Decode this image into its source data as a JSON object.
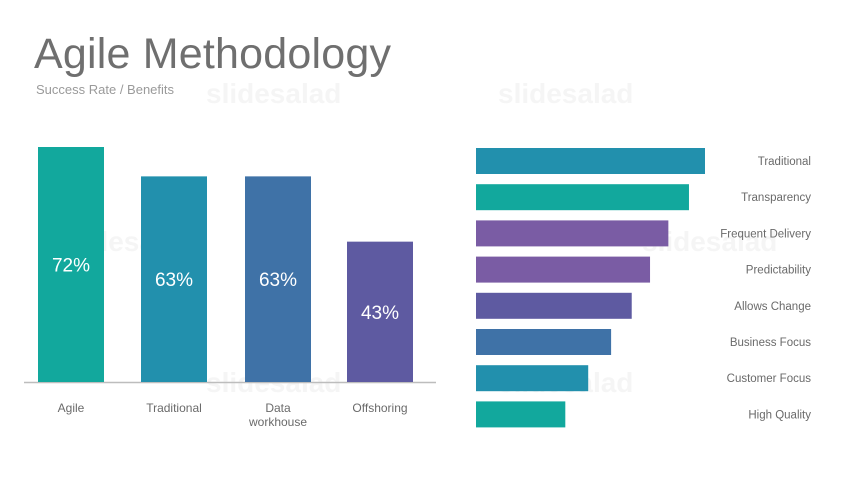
{
  "header": {
    "title": "Agile Methodology",
    "subtitle": "Success Rate / Benefits"
  },
  "watermark": "slidesalad",
  "chart_data": [
    {
      "type": "bar",
      "categories": [
        "Agile",
        "Traditional",
        "Data workhouse",
        "Offshoring"
      ],
      "category_lines": [
        [
          "Agile"
        ],
        [
          "Traditional"
        ],
        [
          "Data",
          "workhouse"
        ],
        [
          "Offshoring"
        ]
      ],
      "values": [
        72,
        63,
        63,
        43
      ],
      "data_labels": [
        "72%",
        "63%",
        "63%",
        "43%"
      ],
      "colors": [
        "#12a89d",
        "#2290ad",
        "#3f72a7",
        "#5e5aa1"
      ],
      "ylim": [
        0,
        72
      ],
      "orientation": "vertical"
    },
    {
      "type": "bar",
      "orientation": "horizontal",
      "categories": [
        "Traditional",
        "Transparency",
        "Frequent Delivery",
        "Predictability",
        "Allows Change",
        "Business Focus",
        "Customer Focus",
        "High Quality"
      ],
      "values": [
        100,
        93,
        84,
        76,
        68,
        59,
        49,
        39
      ],
      "colors": [
        "#2290ad",
        "#12a89d",
        "#7a5ca4",
        "#7a5ca4",
        "#5e5aa1",
        "#3f72a7",
        "#2290ad",
        "#12a89d"
      ],
      "xlim": [
        0,
        100
      ]
    }
  ]
}
